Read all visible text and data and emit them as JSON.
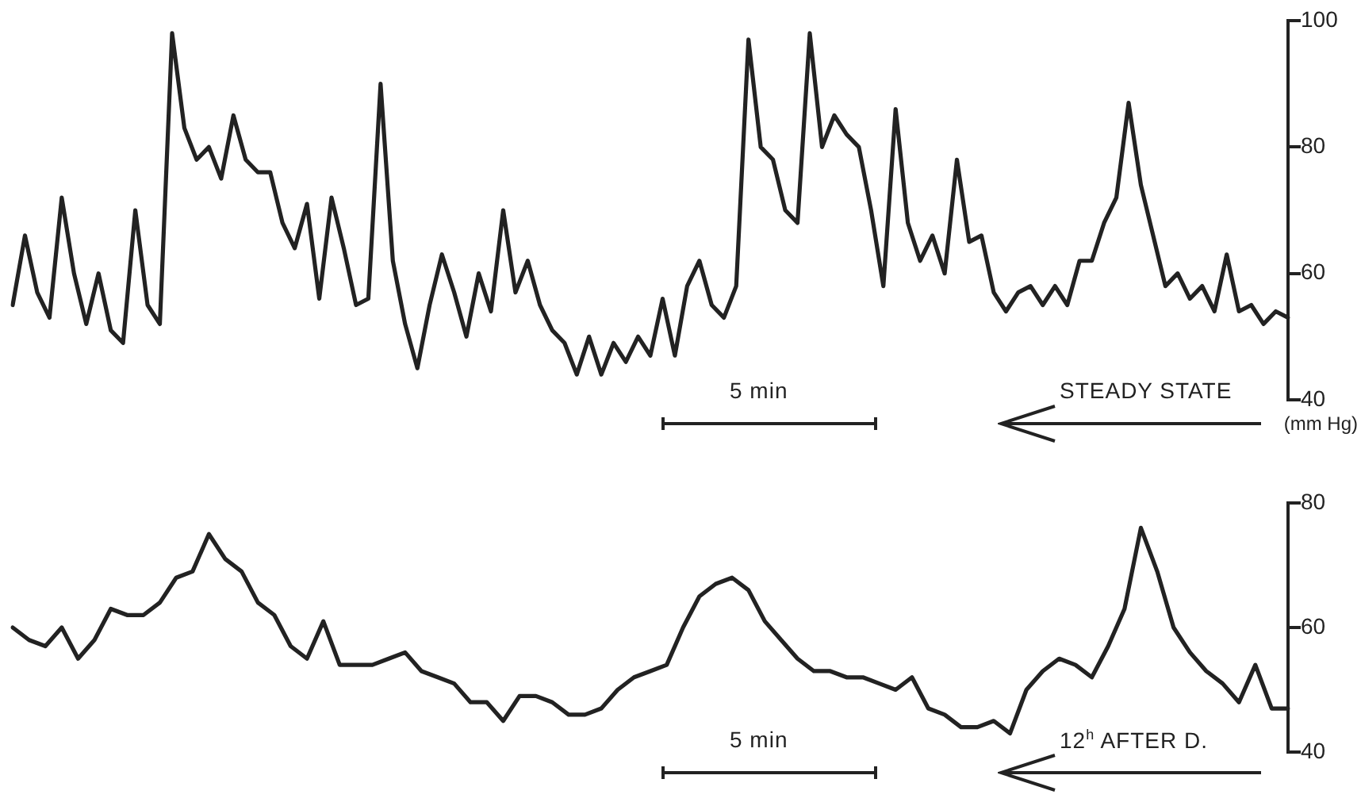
{
  "chart_data": [
    {
      "type": "line",
      "ylabel": "(mm Hg)",
      "ylim": [
        40,
        100
      ],
      "yticks": [
        40,
        60,
        80,
        100
      ],
      "tick_labels": "y",
      "marker": "none",
      "line_style": "solid",
      "legend": false,
      "annotations": [
        "5 min",
        "STEADY STATE"
      ],
      "categories": [
        null,
        null,
        null,
        null,
        null,
        null,
        null,
        null,
        null,
        null,
        null,
        null,
        null,
        null,
        null,
        null,
        null,
        null,
        null,
        null,
        null,
        null,
        null,
        null,
        null,
        null,
        null,
        null,
        null,
        null,
        null,
        null,
        null,
        null,
        null,
        null,
        null,
        null,
        null,
        null,
        null,
        null,
        null,
        null,
        null,
        null,
        null,
        null,
        null,
        null,
        null,
        null,
        null,
        null,
        null,
        null,
        null,
        null,
        null,
        null,
        null,
        null,
        null,
        null,
        null,
        null,
        null,
        null,
        null,
        null,
        null,
        null,
        null,
        null,
        null,
        null,
        null,
        null,
        null,
        null,
        null,
        null,
        null,
        null,
        null,
        null,
        null,
        null,
        null,
        null,
        null,
        null,
        null,
        null,
        null,
        null,
        null,
        null,
        null,
        null,
        null,
        null,
        null,
        null,
        null
      ],
      "series": [
        {
          "color": "#222222",
          "values": [
            55,
            66,
            57,
            53,
            72,
            60,
            52,
            60,
            51,
            49,
            70,
            55,
            52,
            98,
            83,
            78,
            80,
            75,
            85,
            78,
            76,
            76,
            68,
            64,
            71,
            56,
            72,
            64,
            55,
            56,
            90,
            62,
            52,
            45,
            55,
            63,
            57,
            50,
            60,
            54,
            70,
            57,
            62,
            55,
            51,
            49,
            44,
            50,
            44,
            49,
            46,
            50,
            47,
            56,
            47,
            58,
            62,
            55,
            53,
            58,
            97,
            80,
            78,
            70,
            68,
            98,
            80,
            85,
            82,
            80,
            70,
            58,
            86,
            68,
            62,
            66,
            60,
            78,
            65,
            66,
            57,
            54,
            57,
            58,
            55,
            58,
            55,
            62,
            62,
            68,
            72,
            87,
            74,
            66,
            58,
            60,
            56,
            58,
            54,
            63,
            54,
            55,
            52,
            54,
            53
          ]
        }
      ]
    },
    {
      "type": "line",
      "ylim": [
        40,
        80
      ],
      "yticks": [
        40,
        60,
        80
      ],
      "tick_labels": "y",
      "marker": "none",
      "line_style": "solid",
      "legend": false,
      "annotations": [
        "5 min",
        "12$^{h}$ AFTER D."
      ],
      "categories": [
        null,
        null,
        null,
        null,
        null,
        null,
        null,
        null,
        null,
        null,
        null,
        null,
        null,
        null,
        null,
        null,
        null,
        null,
        null,
        null,
        null,
        null,
        null,
        null,
        null,
        null,
        null,
        null,
        null,
        null,
        null,
        null,
        null,
        null,
        null,
        null,
        null,
        null,
        null,
        null,
        null,
        null,
        null,
        null,
        null,
        null,
        null,
        null,
        null,
        null,
        null,
        null,
        null,
        null,
        null,
        null,
        null,
        null,
        null,
        null,
        null,
        null,
        null,
        null,
        null,
        null,
        null,
        null,
        null,
        null,
        null,
        null,
        null,
        null,
        null,
        null,
        null,
        null,
        null
      ],
      "series": [
        {
          "color": "#222222",
          "values": [
            60,
            58,
            57,
            60,
            55,
            58,
            63,
            62,
            62,
            64,
            68,
            69,
            75,
            71,
            69,
            64,
            62,
            57,
            55,
            61,
            54,
            54,
            54,
            55,
            56,
            53,
            52,
            51,
            48,
            48,
            45,
            49,
            49,
            48,
            46,
            46,
            47,
            50,
            52,
            53,
            54,
            60,
            65,
            67,
            68,
            66,
            61,
            58,
            55,
            53,
            53,
            52,
            52,
            51,
            50,
            52,
            47,
            46,
            44,
            44,
            45,
            43,
            50,
            53,
            55,
            54,
            52,
            57,
            63,
            76,
            69,
            60,
            56,
            53,
            51,
            48,
            54,
            47,
            47
          ]
        }
      ]
    }
  ]
}
